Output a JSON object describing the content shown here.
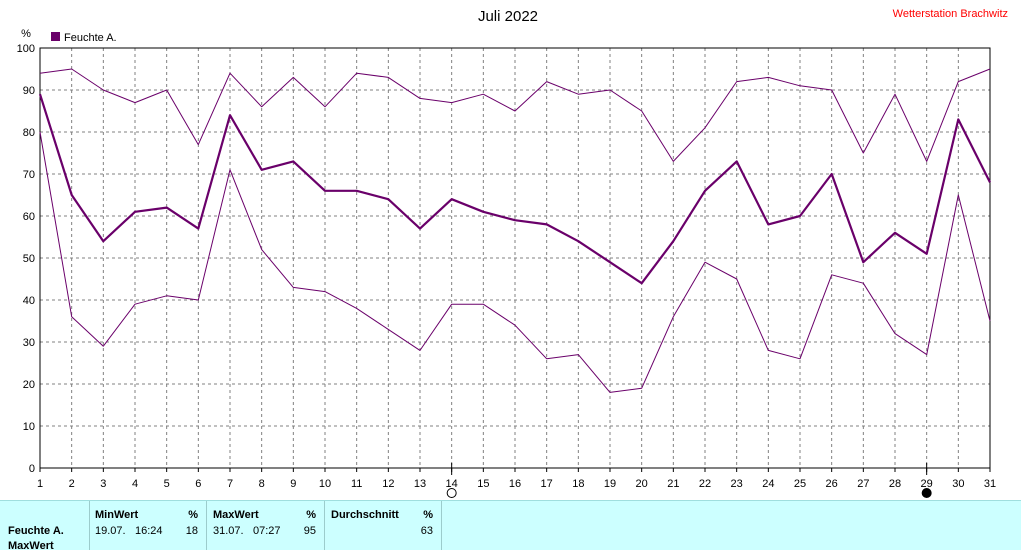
{
  "header": {
    "title": "Juli 2022",
    "station": "Wetterstation Brachwitz"
  },
  "colors": {
    "series": "#6a006a",
    "grid": "#808080",
    "station": "#ff0000",
    "footer_bg": "#ccffff"
  },
  "chart_data": {
    "type": "line",
    "y_unit": "%",
    "legend": "Feuchte A.",
    "legend_placement": "top-left",
    "grid": true,
    "ylim": [
      0,
      100
    ],
    "yticks": [
      0,
      10,
      20,
      30,
      40,
      50,
      60,
      70,
      80,
      90,
      100
    ],
    "x": [
      1,
      2,
      3,
      4,
      5,
      6,
      7,
      8,
      9,
      10,
      11,
      12,
      13,
      14,
      15,
      16,
      17,
      18,
      19,
      20,
      21,
      22,
      23,
      24,
      25,
      26,
      27,
      28,
      29,
      30,
      31
    ],
    "series": [
      {
        "role": "avg",
        "values": [
          89,
          65,
          54,
          61,
          62,
          57,
          84,
          71,
          73,
          66,
          66,
          64,
          57,
          64,
          61,
          59,
          58,
          54,
          49,
          44,
          54,
          66,
          73,
          58,
          60,
          70,
          49,
          56,
          51,
          83,
          68
        ]
      },
      {
        "role": "max",
        "values": [
          94,
          95,
          90,
          87,
          90,
          77,
          94,
          86,
          93,
          86,
          94,
          93,
          88,
          87,
          89,
          85,
          92,
          89,
          90,
          85,
          73,
          81,
          92,
          93,
          91,
          90,
          75,
          89,
          73,
          92,
          95
        ]
      },
      {
        "role": "min",
        "values": [
          80,
          36,
          29,
          39,
          41,
          40,
          71,
          52,
          43,
          42,
          38,
          33,
          28,
          39,
          39,
          34,
          26,
          27,
          18,
          19,
          36,
          49,
          45,
          28,
          26,
          46,
          44,
          32,
          27,
          65,
          35
        ]
      }
    ],
    "moon_markers": [
      {
        "day": 14,
        "phase": "full-moon"
      },
      {
        "day": 29,
        "phase": "new-moon"
      }
    ]
  },
  "footer": {
    "row_label": "Feuchte A.",
    "row_label2": "MaxWert",
    "min": {
      "header": "MinWert",
      "unit": "%",
      "date": "19.07.",
      "time": "16:24",
      "value": "18"
    },
    "max": {
      "header": "MaxWert",
      "unit": "%",
      "date": "31.07.",
      "time": "07:27",
      "value": "95"
    },
    "avg": {
      "header": "Durchschnitt",
      "unit": "%",
      "value": "63"
    }
  }
}
